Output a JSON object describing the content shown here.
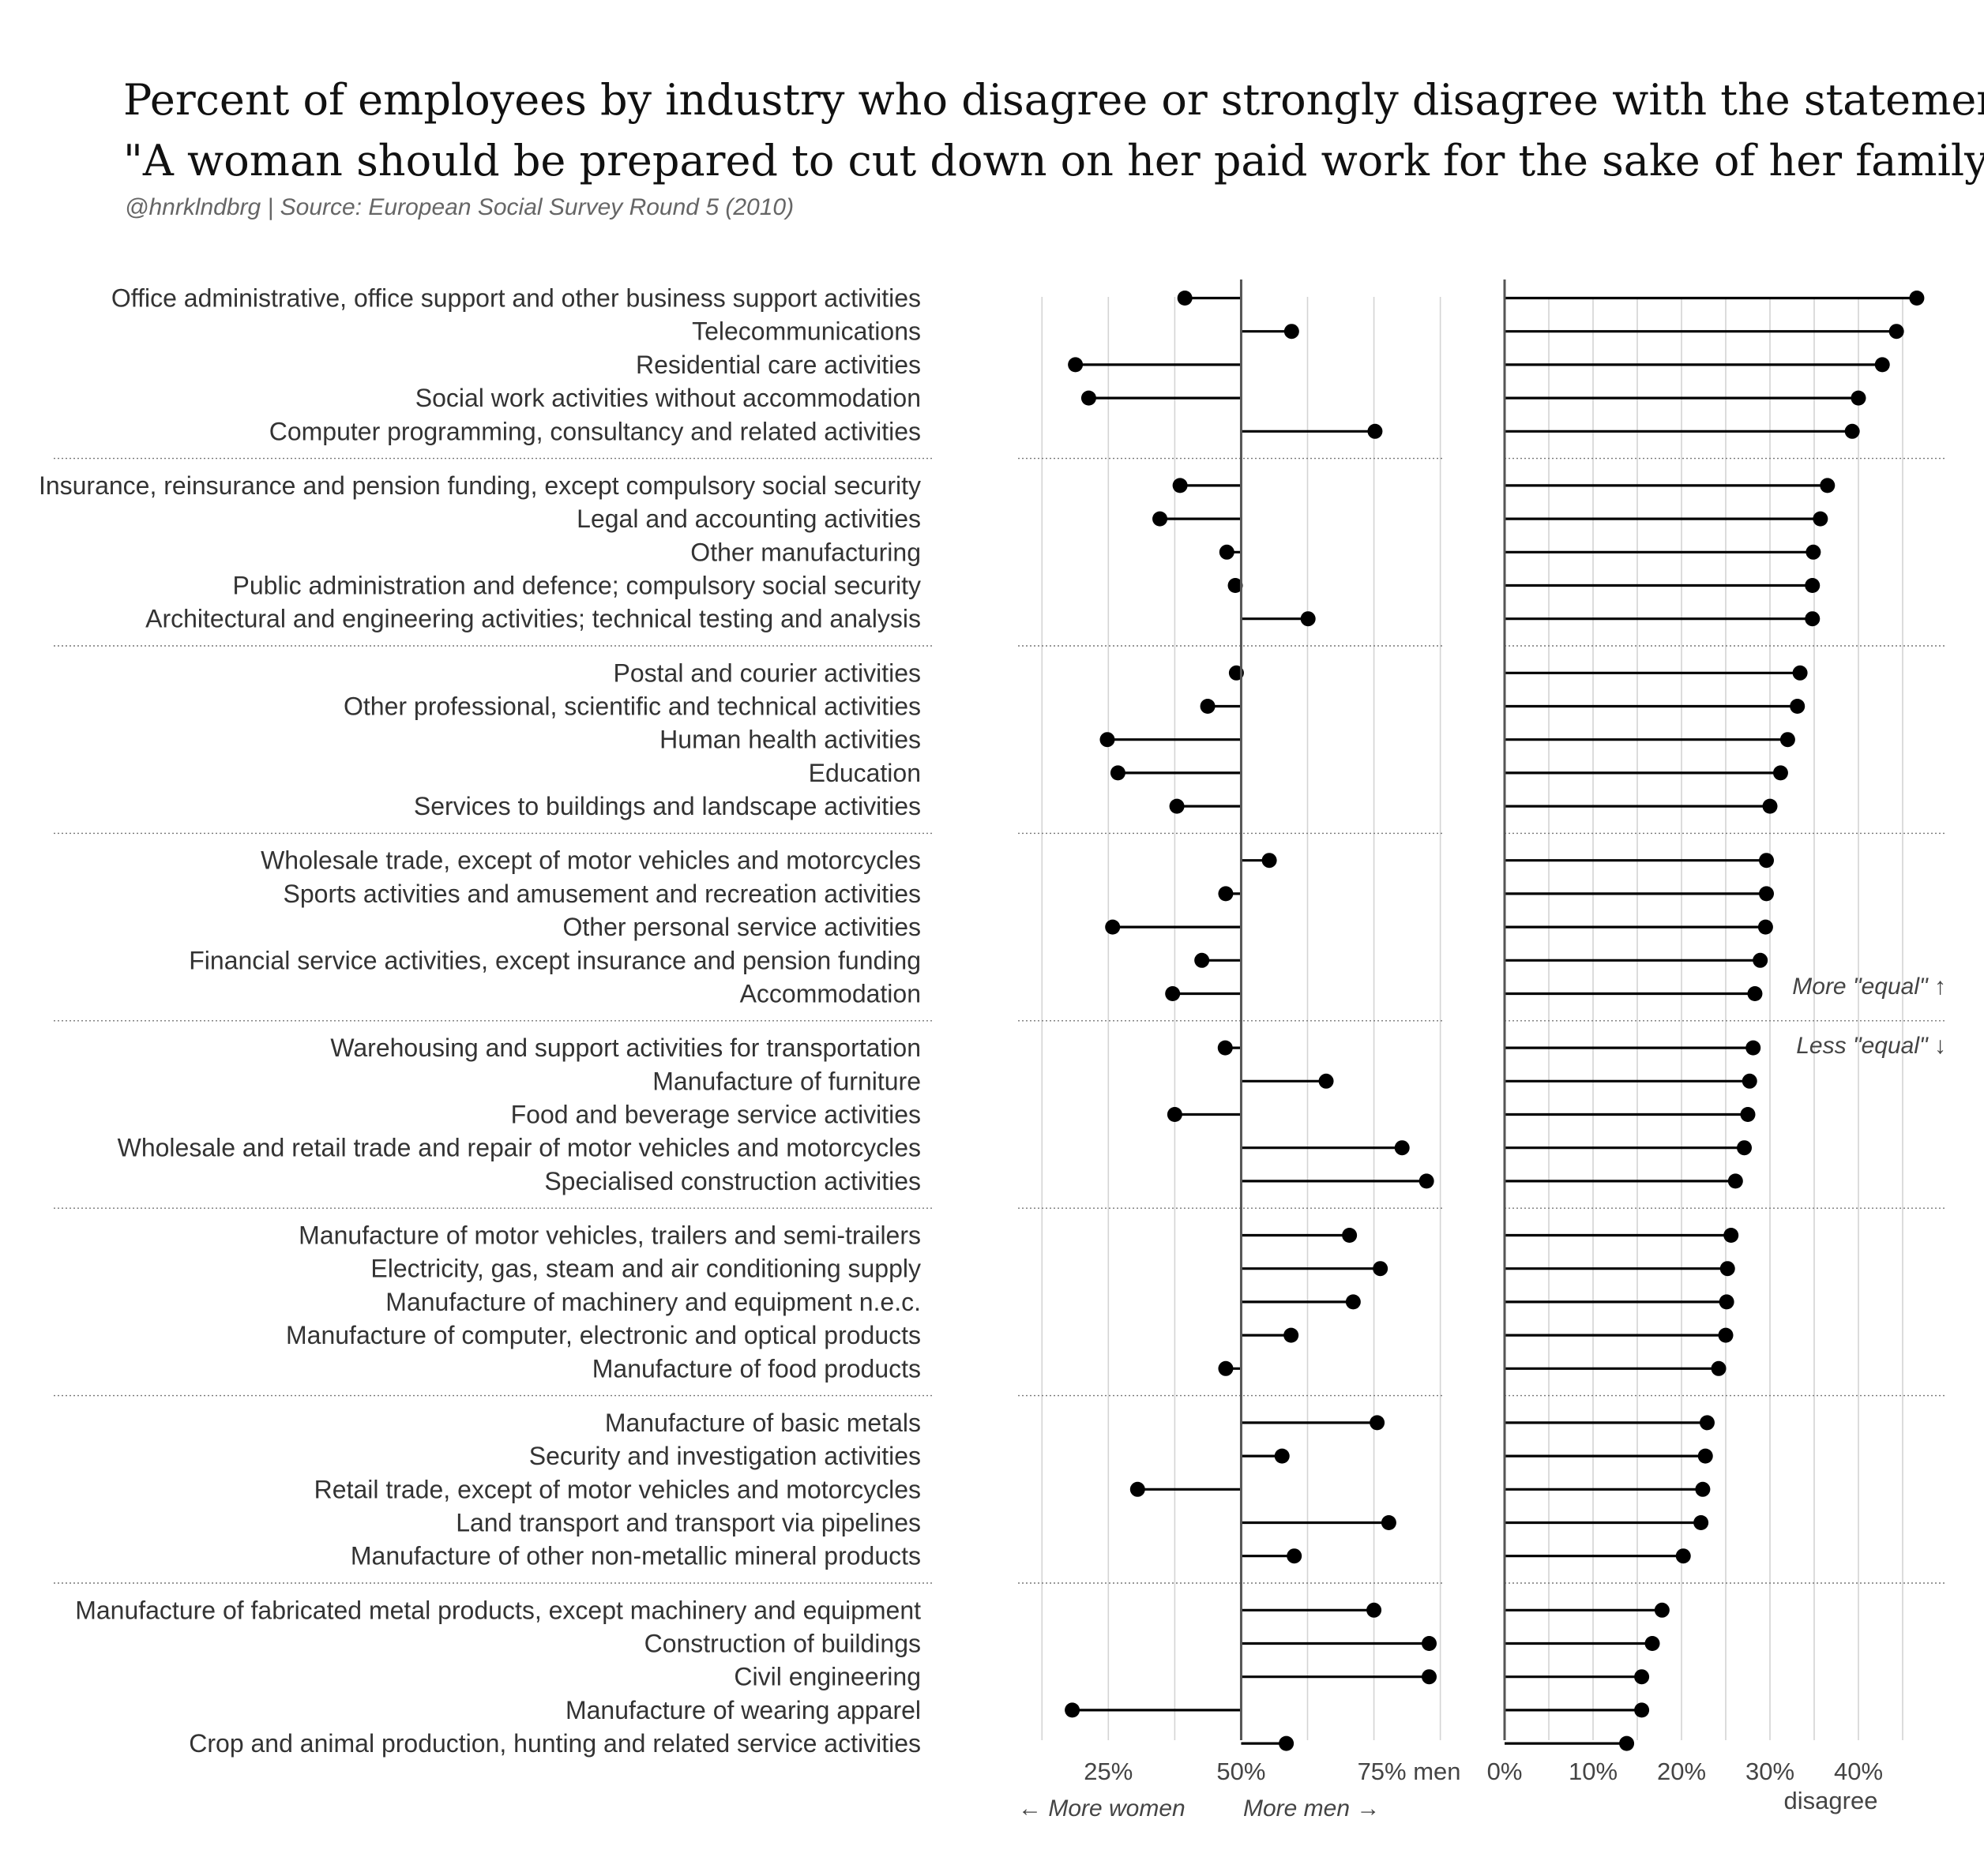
{
  "header": {
    "title_line1": "Percent of employees by industry who disagree or strongly disagree with the statement",
    "title_line2": "\"A woman should be prepared to cut down on her paid work for the sake of her family.\"",
    "subtitle": "@hnrklndbrg | Source: European Social Survey Round 5 (2010)"
  },
  "annotations": {
    "more_women": "← More women",
    "more_men": "More men →",
    "more_equal": "More \"equal\" ↑",
    "less_equal": "Less \"equal\" ↓"
  },
  "chart_data": [
    {
      "type": "lollipop",
      "measure": "share of men among employees",
      "baseline": 50,
      "xlim": [
        8,
        88
      ],
      "grid": true,
      "ticks": [
        {
          "value": 25,
          "label": "25%"
        },
        {
          "value": 50,
          "label": "50%"
        },
        {
          "value": 75,
          "label": "75% men"
        }
      ],
      "minor_ticks": [
        12.5,
        37.5,
        62.5,
        87.5
      ],
      "categories": [
        "Office administrative, office support and other business support activities",
        "Telecommunications",
        "Residential care activities",
        "Social work activities without accommodation",
        "Computer programming, consultancy and related activities",
        "Insurance, reinsurance and pension funding, except compulsory social security",
        "Legal and accounting activities",
        "Other manufacturing",
        "Public administration and defence; compulsory social security",
        "Architectural and engineering activities; technical testing and analysis",
        "Postal and courier activities",
        "Other professional, scientific and technical activities",
        "Human health activities",
        "Education",
        "Services to buildings and landscape activities",
        "Wholesale trade, except of motor vehicles and motorcycles",
        "Sports activities and amusement and recreation activities",
        "Other personal service activities",
        "Financial service activities, except insurance and pension funding",
        "Accommodation",
        "Warehousing and support activities for transportation",
        "Manufacture of furniture",
        "Food and beverage service activities",
        "Wholesale and retail trade and repair of motor vehicles and motorcycles",
        "Specialised construction activities",
        "Manufacture of motor vehicles, trailers and semi-trailers",
        "Electricity, gas, steam and air conditioning supply",
        "Manufacture of machinery and equipment n.e.c.",
        "Manufacture of computer, electronic and optical products",
        "Manufacture of food products",
        "Manufacture of basic metals",
        "Security and investigation activities",
        "Retail trade, except of motor vehicles and motorcycles",
        "Land transport and transport via pipelines",
        "Manufacture of other non-metallic mineral products",
        "Manufacture of fabricated metal products, except machinery and equipment",
        "Construction of buildings",
        "Civil engineering",
        "Manufacture of wearing apparel",
        "Crop and animal production, hunting and related service activities"
      ],
      "values": [
        39.4,
        59.5,
        18.8,
        21.3,
        75.2,
        38.5,
        34.7,
        47.3,
        48.9,
        62.6,
        49.1,
        43.7,
        24.8,
        26.8,
        37.9,
        55.3,
        47.1,
        25.8,
        42.6,
        37.1,
        47.0,
        66.0,
        37.5,
        80.3,
        84.9,
        70.4,
        76.2,
        71.1,
        59.4,
        47.1,
        75.6,
        57.7,
        30.5,
        77.8,
        60.0,
        75.0,
        85.4,
        85.4,
        18.2,
        58.5
      ]
    },
    {
      "type": "lollipop",
      "measure": "percent who disagree",
      "baseline": 0,
      "xlim": [
        0,
        50
      ],
      "grid": true,
      "xlabel": "disagree",
      "ticks": [
        {
          "value": 0,
          "label": "0%"
        },
        {
          "value": 10,
          "label": "10%"
        },
        {
          "value": 20,
          "label": "20%"
        },
        {
          "value": 30,
          "label": "30%"
        },
        {
          "value": 40,
          "label": "40%"
        }
      ],
      "minor_ticks": [
        5,
        15,
        25,
        35,
        45
      ],
      "values": [
        46.6,
        44.3,
        42.7,
        40.0,
        39.3,
        36.5,
        35.7,
        34.9,
        34.8,
        34.8,
        33.4,
        33.1,
        32.0,
        31.2,
        30.0,
        29.6,
        29.6,
        29.5,
        28.9,
        28.3,
        28.1,
        27.7,
        27.5,
        27.1,
        26.1,
        25.6,
        25.2,
        25.1,
        25.0,
        24.2,
        22.9,
        22.7,
        22.4,
        22.2,
        20.2,
        17.8,
        16.7,
        15.5,
        15.5,
        13.8
      ]
    }
  ]
}
